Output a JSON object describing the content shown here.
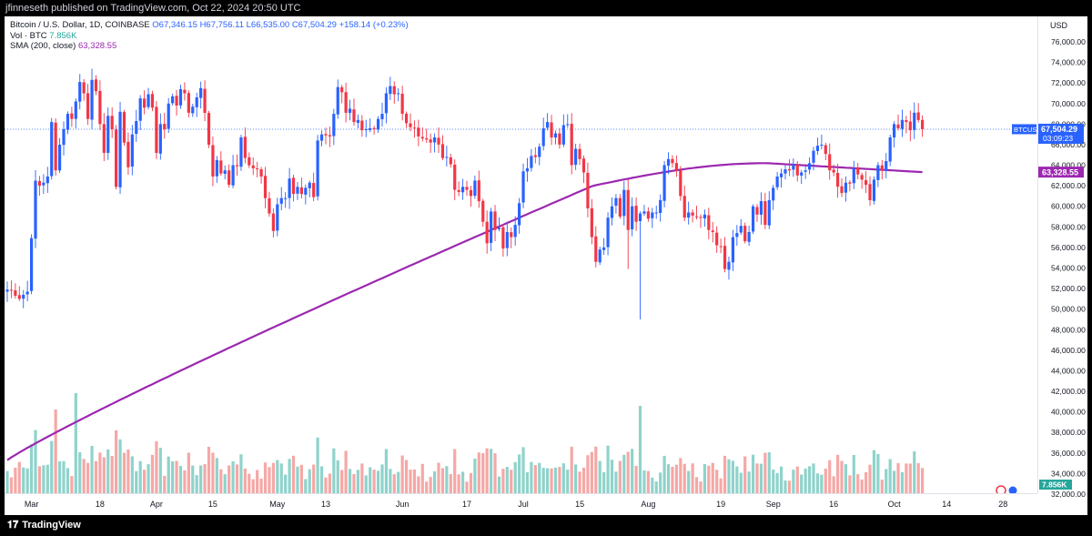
{
  "header": {
    "published": "jfinneseth published on TradingView.com, Oct 22, 2024 20:50 UTC"
  },
  "legend": {
    "symbol": "Bitcoin / U.S. Dollar, 1D, COINBASE",
    "ohlc": "O67,346.15 H67,756.11 L66,535.00 C67,504.29 +158.14 (+0.23%)",
    "vol_label": "Vol · BTC",
    "vol_value": "7.856K",
    "sma_label": "SMA (200, close)",
    "sma_value": "63,328.55"
  },
  "footer": {
    "brand": "TradingView"
  },
  "colors": {
    "up": "#26a69a",
    "down": "#ef5350",
    "price_up": "#2962ff",
    "price_down": "#f23645",
    "sma": "#9c27b0",
    "vol_up": "#8fd3cb",
    "vol_down": "#f5a8a6"
  },
  "chart_data": {
    "type": "candlestick",
    "currency": "USD",
    "ylim": [
      32000,
      76000
    ],
    "yticks": [
      "32,000.00",
      "34,000.00",
      "36,000.00",
      "38,000.00",
      "40,000.00",
      "42,000.00",
      "44,000.00",
      "46,000.00",
      "48,000.00",
      "50,000.00",
      "52,000.00",
      "54,000.00",
      "56,000.00",
      "58,000.00",
      "60,000.00",
      "62,000.00",
      "64,000.00",
      "66,000.00",
      "68,000.00",
      "70,000.00",
      "72,000.00",
      "74,000.00",
      "76,000.00"
    ],
    "xticks": [
      {
        "label": "Mar",
        "bar": 6
      },
      {
        "label": "18",
        "bar": 23
      },
      {
        "label": "Apr",
        "bar": 37
      },
      {
        "label": "15",
        "bar": 51
      },
      {
        "label": "May",
        "bar": 67
      },
      {
        "label": "13",
        "bar": 79
      },
      {
        "label": "Jun",
        "bar": 98
      },
      {
        "label": "17",
        "bar": 114
      },
      {
        "label": "Jul",
        "bar": 128
      },
      {
        "label": "15",
        "bar": 142
      },
      {
        "label": "Aug",
        "bar": 159
      },
      {
        "label": "19",
        "bar": 177
      },
      {
        "label": "Sep",
        "bar": 190
      },
      {
        "label": "16",
        "bar": 205
      },
      {
        "label": "Oct",
        "bar": 220
      },
      {
        "label": "14",
        "bar": 233
      },
      {
        "label": "28",
        "bar": 247
      }
    ],
    "last_price": {
      "symbol": "BTCUSD",
      "value": "67,504.29",
      "countdown": "03:09:23",
      "y": 67504.29
    },
    "sma_label": {
      "value": "63,328.55",
      "y": 63328.55
    },
    "vol_badge": "7.856K",
    "close": [
      51900,
      51800,
      51300,
      51000,
      51400,
      51700,
      56900,
      62500,
      62000,
      62300,
      62900,
      68200,
      63500,
      66000,
      67500,
      69000,
      68500,
      70200,
      72100,
      71000,
      68500,
      72300,
      71200,
      68000,
      65200,
      68800,
      67500,
      61900,
      69200,
      66200,
      63800,
      67000,
      68300,
      70500,
      69600,
      70900,
      69600,
      65200,
      68000,
      67500,
      70000,
      70700,
      69800,
      71400,
      71000,
      69100,
      69700,
      70600,
      71500,
      69100,
      66000,
      62900,
      64500,
      63200,
      63500,
      62100,
      64000,
      63900,
      66700,
      64700,
      64000,
      63700,
      63600,
      62900,
      60800,
      59300,
      57600,
      60200,
      60800,
      60800,
      62700,
      61200,
      61900,
      61200,
      61800,
      62300,
      60900,
      66400,
      67000,
      66900,
      66800,
      69000,
      71600,
      71100,
      69100,
      69500,
      68200,
      68400,
      67400,
      67500,
      67600,
      67500,
      68500,
      69000,
      71000,
      71700,
      70900,
      71000,
      69000,
      68100,
      67700,
      67600,
      66800,
      66600,
      66500,
      66200,
      66700,
      66000,
      64700,
      64800,
      64100,
      61600,
      61400,
      61900,
      61600,
      61000,
      62500,
      60500,
      58500,
      56400,
      59500,
      57700,
      57900,
      55900,
      57500,
      57000,
      58200,
      60300,
      63400,
      63700,
      64900,
      64800,
      65800,
      67600,
      68200,
      66700,
      67100,
      66000,
      67900,
      68000,
      64000,
      65600,
      64600,
      63300,
      59800,
      57000,
      54600,
      55800,
      56000,
      58900,
      60000,
      60800,
      59000,
      61600,
      57700,
      60000,
      58500,
      59300,
      59500,
      58800,
      59400,
      59400,
      60600,
      64000,
      64600,
      64200,
      63500,
      61000,
      58900,
      59400,
      59100,
      59000,
      58900,
      59200,
      57700,
      57500,
      56200,
      56100,
      53900,
      54600,
      57000,
      57400,
      58100,
      56600,
      57500,
      60000,
      59200,
      60500,
      58200,
      60600,
      61800,
      62900,
      63200,
      63600,
      63500,
      64100,
      63000,
      63300,
      63500,
      64200,
      65400,
      65900,
      66000,
      65100,
      63500,
      63300,
      61900,
      61300,
      62300,
      62200,
      63700,
      63100,
      62600,
      62100,
      60600,
      62600,
      64000,
      63500,
      64400,
      66700,
      68000,
      67600,
      68400,
      68200,
      67400,
      69100,
      68400,
      67504
    ]
  }
}
